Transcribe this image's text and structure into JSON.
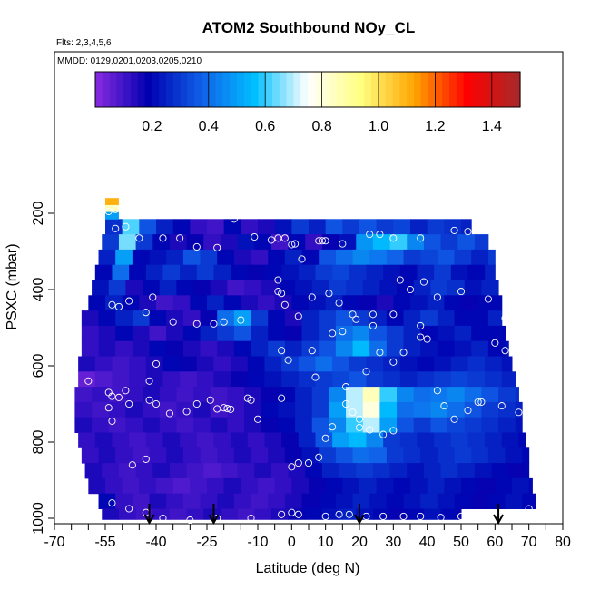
{
  "chart_data": {
    "type": "heatmap",
    "title": "ATOM2 Southbound NOy_CL",
    "flights_note": "Flts: 2,3,4,5,6",
    "dates_note": "MMDD: 0129,0201,0203,0205,0210",
    "xlabel": "Latitude (deg N)",
    "ylabel": "PSXC (mbar)",
    "xlim": [
      -70,
      80
    ],
    "ylim": [
      1000,
      100
    ],
    "x_ticks": [
      -70,
      -55,
      -40,
      -25,
      -10,
      0,
      10,
      20,
      30,
      40,
      50,
      60,
      70,
      80
    ],
    "y_ticks": [
      200,
      400,
      600,
      800,
      1000
    ],
    "colorbar": {
      "range": [
        0,
        1.5
      ],
      "ticks": [
        0.2,
        0.4,
        0.6,
        0.8,
        1.0,
        1.2,
        1.4
      ],
      "tick_labels": [
        "0.2",
        "0.4",
        "0.6",
        "0.8",
        "1.0",
        "1.2",
        "1.4"
      ],
      "colors": [
        "#8a2be2",
        "#0000b0",
        "#1060e8",
        "#00bfff",
        "#ffffff",
        "#ffff80",
        "#ffa500",
        "#ff0000",
        "#a52a2a"
      ]
    },
    "arrow_latitudes": [
      -42,
      -23,
      20,
      61
    ],
    "pressure_rows": [
      {
        "p_top": 215,
        "p_bot": 255,
        "lat_min": -55,
        "lat_max": 53,
        "dlat": 5,
        "values": [
          0.28,
          0.62,
          0.35,
          0.25,
          0.2,
          0.12,
          0.1,
          0.2,
          0.12,
          0.15,
          0.22,
          0.3,
          0.25,
          0.35,
          0.3,
          0.35,
          0.3,
          0.32,
          0.25,
          0.3,
          0.28,
          0.25
        ]
      },
      {
        "p_top": 255,
        "p_bot": 295,
        "lat_min": -56,
        "lat_max": 58,
        "dlat": 5,
        "values": [
          0.3,
          0.65,
          0.3,
          0.2,
          0.15,
          0.18,
          0.12,
          0.15,
          0.22,
          0.2,
          0.1,
          0.2,
          0.12,
          0.18,
          0.22,
          0.48,
          0.55,
          0.6,
          0.45,
          0.35,
          0.3,
          0.35,
          0.3
        ]
      },
      {
        "p_top": 295,
        "p_bot": 335,
        "lat_min": -57,
        "lat_max": 60,
        "dlat": 5,
        "values": [
          0.25,
          0.5,
          0.2,
          0.22,
          0.25,
          0.35,
          0.3,
          0.2,
          0.15,
          0.12,
          0.2,
          0.25,
          0.2,
          0.35,
          0.4,
          0.45,
          0.42,
          0.38,
          0.3,
          0.32,
          0.35,
          0.3,
          0.25,
          0.3
        ]
      },
      {
        "p_top": 335,
        "p_bot": 375,
        "lat_min": -58,
        "lat_max": 60,
        "dlat": 5,
        "values": [
          0.2,
          0.4,
          0.2,
          0.25,
          0.3,
          0.25,
          0.3,
          0.25,
          0.2,
          0.18,
          0.2,
          0.22,
          0.25,
          0.3,
          0.32,
          0.28,
          0.25,
          0.22,
          0.2,
          0.25,
          0.3,
          0.22,
          0.2,
          0.25
        ]
      },
      {
        "p_top": 375,
        "p_bot": 415,
        "lat_min": -59,
        "lat_max": 61,
        "dlat": 5,
        "values": [
          0.22,
          0.3,
          0.15,
          0.2,
          0.25,
          0.2,
          0.18,
          0.15,
          0.1,
          0.12,
          0.15,
          0.2,
          0.22,
          0.25,
          0.3,
          0.28,
          0.25,
          0.22,
          0.2,
          0.25,
          0.3,
          0.28,
          0.22,
          0.25
        ]
      },
      {
        "p_top": 415,
        "p_bot": 455,
        "lat_min": -60,
        "lat_max": 62,
        "dlat": 5,
        "values": [
          0.2,
          0.25,
          0.2,
          0.15,
          0.1,
          0.12,
          0.2,
          0.25,
          0.2,
          0.15,
          0.12,
          0.15,
          0.2,
          0.22,
          0.25,
          0.2,
          0.18,
          0.15,
          0.2,
          0.22,
          0.25,
          0.2,
          0.18,
          0.2,
          0.2
        ]
      },
      {
        "p_top": 455,
        "p_bot": 495,
        "lat_min": -62,
        "lat_max": 62,
        "dlat": 5,
        "values": [
          0.15,
          0.2,
          0.25,
          0.3,
          0.2,
          0.15,
          0.12,
          0.18,
          0.4,
          0.5,
          0.3,
          0.2,
          0.15,
          0.25,
          0.3,
          0.35,
          0.3,
          0.25,
          0.2,
          0.25,
          0.3,
          0.25,
          0.2,
          0.2,
          0.25
        ]
      },
      {
        "p_top": 495,
        "p_bot": 535,
        "lat_min": -62,
        "lat_max": 63,
        "dlat": 5,
        "values": [
          0.12,
          0.15,
          0.2,
          0.15,
          0.1,
          0.15,
          0.2,
          0.25,
          0.3,
          0.35,
          0.25,
          0.2,
          0.18,
          0.25,
          0.3,
          0.4,
          0.45,
          0.35,
          0.3,
          0.25,
          0.2,
          0.22,
          0.25,
          0.2,
          0.2,
          0.22
        ]
      },
      {
        "p_top": 535,
        "p_bot": 575,
        "lat_min": -62,
        "lat_max": 64,
        "dlat": 5,
        "values": [
          0.12,
          0.15,
          0.12,
          0.15,
          0.2,
          0.18,
          0.15,
          0.12,
          0.15,
          0.2,
          0.25,
          0.3,
          0.25,
          0.3,
          0.35,
          0.45,
          0.55,
          0.4,
          0.3,
          0.25,
          0.22,
          0.2,
          0.22,
          0.25,
          0.2,
          0.22
        ]
      },
      {
        "p_top": 575,
        "p_bot": 615,
        "lat_min": -63,
        "lat_max": 65,
        "dlat": 5,
        "values": [
          0.15,
          0.12,
          0.1,
          0.12,
          0.15,
          0.2,
          0.18,
          0.15,
          0.12,
          0.15,
          0.2,
          0.25,
          0.3,
          0.35,
          0.4,
          0.35,
          0.3,
          0.28,
          0.25,
          0.22,
          0.2,
          0.22,
          0.25,
          0.28,
          0.25,
          0.22
        ]
      },
      {
        "p_top": 615,
        "p_bot": 655,
        "lat_min": -63,
        "lat_max": 66,
        "dlat": 5,
        "values": [
          0.05,
          0.08,
          0.1,
          0.12,
          0.15,
          0.12,
          0.1,
          0.12,
          0.15,
          0.18,
          0.2,
          0.22,
          0.25,
          0.28,
          0.3,
          0.32,
          0.35,
          0.3,
          0.28,
          0.25,
          0.28,
          0.3,
          0.32,
          0.3,
          0.28,
          0.25
        ]
      },
      {
        "p_top": 655,
        "p_bot": 695,
        "lat_min": -64,
        "lat_max": 67,
        "dlat": 5,
        "values": [
          0.1,
          0.12,
          0.1,
          0.12,
          0.15,
          0.12,
          0.1,
          0.12,
          0.1,
          0.12,
          0.15,
          0.18,
          0.2,
          0.25,
          0.3,
          0.45,
          0.7,
          0.85,
          0.6,
          0.45,
          0.4,
          0.42,
          0.45,
          0.4,
          0.35,
          0.3,
          0.28
        ]
      },
      {
        "p_top": 695,
        "p_bot": 735,
        "lat_min": -64,
        "lat_max": 68,
        "dlat": 5,
        "values": [
          0.12,
          0.1,
          0.12,
          0.15,
          0.12,
          0.1,
          0.12,
          0.15,
          0.1,
          0.12,
          0.15,
          0.2,
          0.22,
          0.25,
          0.3,
          0.5,
          0.7,
          0.8,
          0.55,
          0.4,
          0.42,
          0.45,
          0.4,
          0.35,
          0.3,
          0.28,
          0.25
        ]
      },
      {
        "p_top": 735,
        "p_bot": 775,
        "lat_min": -64,
        "lat_max": 68,
        "dlat": 5,
        "values": [
          0.15,
          0.12,
          0.1,
          0.12,
          0.15,
          0.12,
          0.1,
          0.12,
          0.15,
          0.12,
          0.15,
          0.18,
          0.2,
          0.25,
          0.35,
          0.45,
          0.6,
          0.7,
          0.5,
          0.35,
          0.3,
          0.35,
          0.32,
          0.3,
          0.28,
          0.25,
          0.22
        ]
      },
      {
        "p_top": 775,
        "p_bot": 815,
        "lat_min": -63,
        "lat_max": 69,
        "dlat": 5,
        "values": [
          0.12,
          0.15,
          0.12,
          0.1,
          0.12,
          0.15,
          0.12,
          0.1,
          0.12,
          0.15,
          0.12,
          0.15,
          0.18,
          0.25,
          0.35,
          0.5,
          0.55,
          0.45,
          0.3,
          0.28,
          0.25,
          0.28,
          0.3,
          0.28,
          0.25,
          0.22,
          0.2
        ]
      },
      {
        "p_top": 815,
        "p_bot": 855,
        "lat_min": -62,
        "lat_max": 70,
        "dlat": 5,
        "values": [
          0.12,
          0.15,
          0.12,
          0.1,
          0.12,
          0.15,
          0.12,
          0.1,
          0.12,
          0.15,
          0.12,
          0.15,
          0.18,
          0.22,
          0.3,
          0.35,
          0.4,
          0.38,
          0.3,
          0.28,
          0.25,
          0.28,
          0.3,
          0.28,
          0.25,
          0.22,
          0.2
        ]
      },
      {
        "p_top": 855,
        "p_bot": 895,
        "lat_min": -61,
        "lat_max": 70,
        "dlat": 5,
        "values": [
          0.15,
          0.12,
          0.1,
          0.12,
          0.15,
          0.12,
          0.1,
          0.08,
          0.1,
          0.12,
          0.15,
          0.12,
          0.15,
          0.2,
          0.25,
          0.28,
          0.3,
          0.28,
          0.25,
          0.22,
          0.25,
          0.28,
          0.25,
          0.22,
          0.2,
          0.18,
          0.2
        ]
      },
      {
        "p_top": 895,
        "p_bot": 935,
        "lat_min": -60,
        "lat_max": 71,
        "dlat": 5,
        "values": [
          0.15,
          0.12,
          0.1,
          0.12,
          0.1,
          0.08,
          0.1,
          0.12,
          0.15,
          0.12,
          0.1,
          0.12,
          0.15,
          0.18,
          0.2,
          0.22,
          0.25,
          0.22,
          0.2,
          0.22,
          0.25,
          0.22,
          0.2,
          0.18,
          0.2,
          0.22,
          0.2
        ]
      },
      {
        "p_top": 935,
        "p_bot": 975,
        "lat_min": -57,
        "lat_max": 72,
        "dlat": 5,
        "values": [
          0.2,
          0.12,
          0.1,
          0.15,
          0.12,
          0.1,
          0.12,
          0.15,
          0.12,
          0.1,
          0.12,
          0.15,
          0.18,
          0.2,
          0.22,
          0.25,
          0.22,
          0.2,
          0.22,
          0.25,
          0.22,
          0.2,
          0.18,
          0.2,
          0.22,
          0.2
        ]
      },
      {
        "p_top": 975,
        "p_bot": 1003,
        "lat_min": -56,
        "lat_max": 50,
        "dlat": 5,
        "values": [
          0.15,
          0.12,
          0.1,
          0.12,
          0.1,
          0.12,
          0.15,
          0.12,
          0.1,
          0.12,
          0.15,
          0.18,
          0.2,
          0.22,
          0.25,
          0.22,
          0.2,
          0.18,
          0.2,
          0.22,
          0.2,
          0.18
        ]
      }
    ],
    "strat_cell": {
      "lat_min": -55,
      "lat_max": -51,
      "p_top": 160,
      "p_bot": 215,
      "values": [
        1.1,
        0.85,
        0.5
      ]
    },
    "observation_points": [
      [
        -54,
        195
      ],
      [
        -52,
        190
      ],
      [
        -50,
        195
      ],
      [
        -48,
        190
      ],
      [
        -47,
        200
      ],
      [
        -52,
        240
      ],
      [
        -49,
        235
      ],
      [
        -45,
        265
      ],
      [
        -38,
        265
      ],
      [
        -33,
        265
      ],
      [
        -28,
        288
      ],
      [
        -22,
        290
      ],
      [
        -17,
        215
      ],
      [
        -11,
        262
      ],
      [
        -6,
        270
      ],
      [
        -4,
        265
      ],
      [
        -2,
        265
      ],
      [
        0,
        282
      ],
      [
        1,
        280
      ],
      [
        3,
        320
      ],
      [
        8,
        272
      ],
      [
        9,
        272
      ],
      [
        10,
        272
      ],
      [
        15,
        280
      ],
      [
        23,
        255
      ],
      [
        26,
        255
      ],
      [
        30,
        265
      ],
      [
        38,
        265
      ],
      [
        48,
        245
      ],
      [
        52,
        248
      ],
      [
        62,
        280
      ],
      [
        -53,
        440
      ],
      [
        -51,
        445
      ],
      [
        -48,
        430
      ],
      [
        -43,
        460
      ],
      [
        -41,
        420
      ],
      [
        -35,
        485
      ],
      [
        -28,
        490
      ],
      [
        -23,
        490
      ],
      [
        -20,
        485
      ],
      [
        -15,
        480
      ],
      [
        -4,
        375
      ],
      [
        -4,
        405
      ],
      [
        -3,
        410
      ],
      [
        -2,
        440
      ],
      [
        2,
        470
      ],
      [
        6,
        420
      ],
      [
        11,
        410
      ],
      [
        14,
        435
      ],
      [
        18,
        465
      ],
      [
        19,
        478
      ],
      [
        24,
        465
      ],
      [
        24,
        495
      ],
      [
        30,
        465
      ],
      [
        32,
        375
      ],
      [
        35,
        400
      ],
      [
        38,
        495
      ],
      [
        39,
        380
      ],
      [
        43,
        420
      ],
      [
        50,
        405
      ],
      [
        58,
        425
      ],
      [
        63,
        475
      ],
      [
        -60,
        640
      ],
      [
        -54,
        670
      ],
      [
        -53,
        680
      ],
      [
        -51,
        683
      ],
      [
        -49,
        665
      ],
      [
        -48,
        700
      ],
      [
        -42,
        690
      ],
      [
        -42,
        640
      ],
      [
        -40,
        595
      ],
      [
        -28,
        700
      ],
      [
        -22,
        713
      ],
      [
        -19,
        712
      ],
      [
        -13,
        685
      ],
      [
        -12,
        690
      ],
      [
        -3,
        685
      ],
      [
        -3,
        560
      ],
      [
        -1,
        585
      ],
      [
        6,
        560
      ],
      [
        7,
        630
      ],
      [
        12,
        515
      ],
      [
        15,
        510
      ],
      [
        16,
        655
      ],
      [
        16,
        700
      ],
      [
        20,
        740
      ],
      [
        22,
        615
      ],
      [
        26,
        565
      ],
      [
        30,
        590
      ],
      [
        33,
        565
      ],
      [
        38,
        525
      ],
      [
        40,
        530
      ],
      [
        45,
        705
      ],
      [
        55,
        695
      ],
      [
        56,
        695
      ],
      [
        60,
        540
      ],
      [
        63,
        560
      ],
      [
        -54,
        710
      ],
      [
        -53,
        745
      ],
      [
        -47,
        860
      ],
      [
        -43,
        845
      ],
      [
        -40,
        700
      ],
      [
        -36,
        725
      ],
      [
        -31,
        720
      ],
      [
        -24,
        690
      ],
      [
        -20,
        710
      ],
      [
        -18,
        714
      ],
      [
        -10,
        740
      ],
      [
        0,
        865
      ],
      [
        2,
        855
      ],
      [
        5,
        855
      ],
      [
        8,
        840
      ],
      [
        10,
        790
      ],
      [
        12,
        760
      ],
      [
        18,
        722
      ],
      [
        20,
        762
      ],
      [
        23,
        768
      ],
      [
        27,
        780
      ],
      [
        30,
        770
      ],
      [
        43,
        665
      ],
      [
        48,
        740
      ],
      [
        52,
        717
      ],
      [
        62,
        705
      ],
      [
        67,
        722
      ],
      [
        -53,
        960
      ],
      [
        -48,
        975
      ],
      [
        -43,
        985
      ],
      [
        -38,
        1000
      ],
      [
        -30,
        1005
      ],
      [
        -22,
        1000
      ],
      [
        -12,
        1000
      ],
      [
        -3,
        990
      ],
      [
        0,
        985
      ],
      [
        2,
        990
      ],
      [
        10,
        995
      ],
      [
        14,
        990
      ],
      [
        17,
        990
      ],
      [
        22,
        995
      ],
      [
        27,
        995
      ],
      [
        33,
        995
      ],
      [
        38,
        995
      ],
      [
        44,
        998
      ],
      [
        50,
        995
      ],
      [
        59,
        998
      ],
      [
        62,
        995
      ],
      [
        70,
        975
      ]
    ]
  }
}
